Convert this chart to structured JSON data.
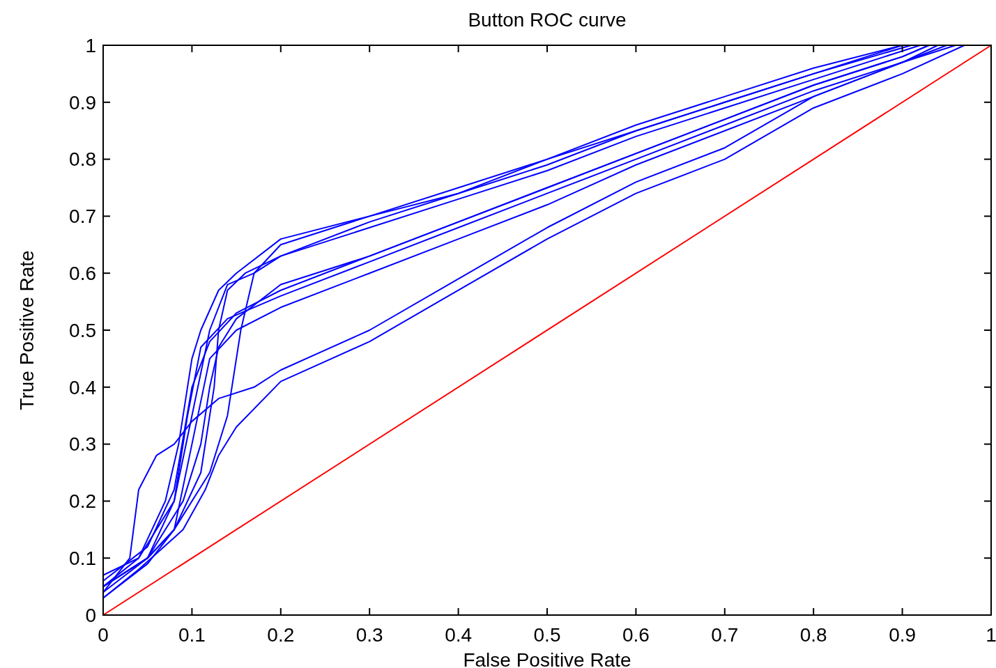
{
  "chart_data": {
    "type": "line",
    "title": "Button ROC curve",
    "xlabel": "False Positive Rate",
    "ylabel": "True Positive Rate",
    "xlim": [
      0,
      1
    ],
    "ylim": [
      0,
      1
    ],
    "xticks": [
      0,
      0.1,
      0.2,
      0.3,
      0.4,
      0.5,
      0.6,
      0.7,
      0.8,
      0.9,
      1
    ],
    "yticks": [
      0,
      0.1,
      0.2,
      0.3,
      0.4,
      0.5,
      0.6,
      0.7,
      0.8,
      0.9,
      1
    ],
    "grid": false,
    "line_style": "solid",
    "series": [
      {
        "color": "#0000ff",
        "x": [
          0,
          0.04,
          0.08,
          0.1,
          0.12,
          0.14,
          0.17,
          0.2,
          0.3,
          0.4,
          0.5,
          0.6,
          0.7,
          0.8,
          0.9
        ],
        "values": [
          0.05,
          0.1,
          0.2,
          0.35,
          0.5,
          0.58,
          0.6,
          0.65,
          0.7,
          0.75,
          0.8,
          0.86,
          0.91,
          0.96,
          1
        ]
      },
      {
        "color": "#0000ff",
        "x": [
          0,
          0.05,
          0.08,
          0.12,
          0.14,
          0.155,
          0.17,
          0.2,
          0.3,
          0.4,
          0.5,
          0.6,
          0.7,
          0.8,
          0.9,
          0.92
        ],
        "values": [
          0.05,
          0.1,
          0.15,
          0.25,
          0.35,
          0.5,
          0.6,
          0.63,
          0.68,
          0.73,
          0.78,
          0.84,
          0.89,
          0.94,
          0.99,
          1
        ]
      },
      {
        "color": "#0000ff",
        "x": [
          0,
          0.04,
          0.07,
          0.085,
          0.1,
          0.11,
          0.13,
          0.15,
          0.2,
          0.3,
          0.4,
          0.5,
          0.6,
          0.7,
          0.8,
          0.9
        ],
        "values": [
          0.07,
          0.1,
          0.2,
          0.3,
          0.45,
          0.5,
          0.57,
          0.6,
          0.66,
          0.7,
          0.74,
          0.79,
          0.85,
          0.9,
          0.95,
          1
        ]
      },
      {
        "color": "#0000ff",
        "x": [
          0,
          0.05,
          0.08,
          0.11,
          0.125,
          0.13,
          0.14,
          0.16,
          0.2,
          0.3,
          0.4,
          0.5,
          0.6,
          0.7,
          0.8,
          0.91
        ],
        "values": [
          0.05,
          0.1,
          0.15,
          0.25,
          0.4,
          0.5,
          0.57,
          0.6,
          0.63,
          0.69,
          0.74,
          0.8,
          0.85,
          0.9,
          0.95,
          1
        ]
      },
      {
        "color": "#0000ff",
        "x": [
          0,
          0.05,
          0.08,
          0.095,
          0.11,
          0.14,
          0.2,
          0.3,
          0.4,
          0.5,
          0.6,
          0.7,
          0.8,
          0.9,
          0.94
        ],
        "values": [
          0.04,
          0.1,
          0.2,
          0.35,
          0.47,
          0.52,
          0.56,
          0.62,
          0.68,
          0.74,
          0.8,
          0.86,
          0.92,
          0.97,
          1
        ]
      },
      {
        "color": "#0000ff",
        "x": [
          0,
          0.05,
          0.08,
          0.1,
          0.12,
          0.15,
          0.2,
          0.3,
          0.4,
          0.5,
          0.6,
          0.7,
          0.8,
          0.9,
          0.95
        ],
        "values": [
          0.03,
          0.09,
          0.15,
          0.3,
          0.45,
          0.5,
          0.54,
          0.6,
          0.66,
          0.72,
          0.79,
          0.85,
          0.91,
          0.97,
          1
        ]
      },
      {
        "color": "#0000ff",
        "x": [
          0,
          0.05,
          0.09,
          0.11,
          0.12,
          0.13,
          0.15,
          0.2,
          0.3,
          0.4,
          0.5,
          0.6,
          0.7,
          0.8,
          0.9,
          0.93
        ],
        "values": [
          0.05,
          0.1,
          0.2,
          0.3,
          0.4,
          0.47,
          0.52,
          0.58,
          0.63,
          0.69,
          0.75,
          0.81,
          0.87,
          0.93,
          0.98,
          1
        ]
      },
      {
        "color": "#0000ff",
        "x": [
          0,
          0.05,
          0.08,
          0.1,
          0.12,
          0.15,
          0.2,
          0.3,
          0.4,
          0.5,
          0.6,
          0.7,
          0.8,
          0.9,
          0.93
        ],
        "values": [
          0.06,
          0.12,
          0.22,
          0.4,
          0.48,
          0.53,
          0.57,
          0.63,
          0.69,
          0.75,
          0.81,
          0.87,
          0.93,
          0.98,
          1
        ]
      },
      {
        "color": "#0000ff",
        "x": [
          0,
          0.03,
          0.04,
          0.06,
          0.08,
          0.1,
          0.13,
          0.17,
          0.2,
          0.3,
          0.4,
          0.5,
          0.6,
          0.7,
          0.8,
          0.9,
          0.96
        ],
        "values": [
          0.04,
          0.1,
          0.22,
          0.28,
          0.3,
          0.34,
          0.38,
          0.4,
          0.43,
          0.5,
          0.59,
          0.68,
          0.76,
          0.82,
          0.91,
          0.97,
          1
        ]
      },
      {
        "color": "#0000ff",
        "x": [
          0,
          0.04,
          0.09,
          0.115,
          0.13,
          0.15,
          0.2,
          0.3,
          0.4,
          0.5,
          0.6,
          0.7,
          0.8,
          0.9,
          0.97
        ],
        "values": [
          0.03,
          0.08,
          0.15,
          0.22,
          0.28,
          0.33,
          0.41,
          0.48,
          0.57,
          0.66,
          0.74,
          0.8,
          0.89,
          0.95,
          1
        ]
      },
      {
        "color": "#ff0000",
        "x": [
          0,
          1
        ],
        "values": [
          0,
          1
        ]
      }
    ]
  }
}
